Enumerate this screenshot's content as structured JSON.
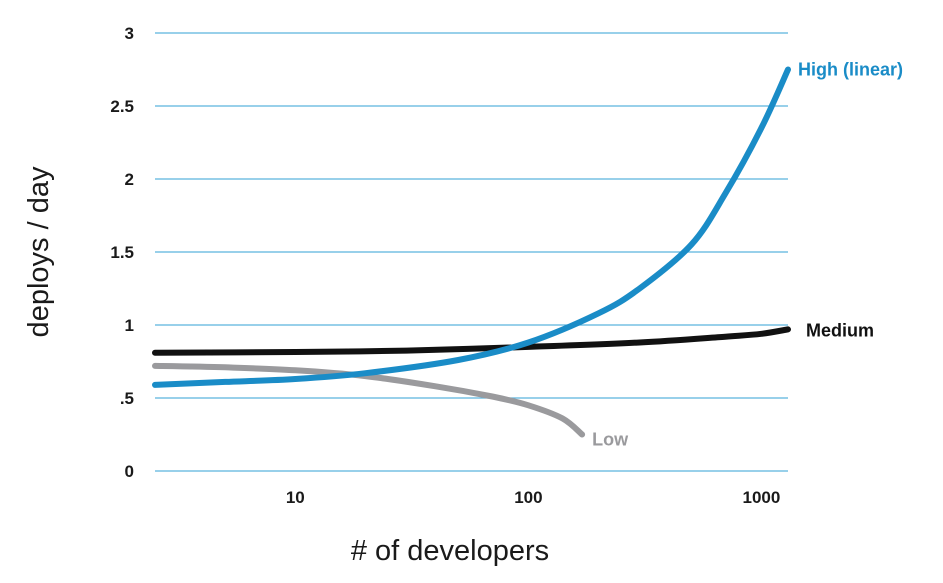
{
  "chart_data": {
    "type": "line",
    "title": "",
    "xlabel": "# of developers",
    "ylabel": "deploys / day",
    "xscale": "log",
    "xlim": [
      2.5,
      1300
    ],
    "ylim": [
      0,
      3
    ],
    "grid": "horizontal",
    "x_ticks": [
      {
        "value": 10,
        "label": "10"
      },
      {
        "value": 100,
        "label": "100"
      },
      {
        "value": 1000,
        "label": "1000"
      }
    ],
    "y_ticks": [
      {
        "value": 0,
        "label": "0"
      },
      {
        "value": 0.5,
        "label": ".5"
      },
      {
        "value": 1,
        "label": "1"
      },
      {
        "value": 1.5,
        "label": "1.5"
      },
      {
        "value": 2,
        "label": "2"
      },
      {
        "value": 2.5,
        "label": "2.5"
      },
      {
        "value": 3,
        "label": "3"
      }
    ],
    "series": [
      {
        "name": "Low",
        "color": "#9a9a9d",
        "points": [
          [
            2.5,
            0.72
          ],
          [
            5,
            0.71
          ],
          [
            10,
            0.69
          ],
          [
            20,
            0.65
          ],
          [
            40,
            0.58
          ],
          [
            70,
            0.51
          ],
          [
            100,
            0.45
          ],
          [
            140,
            0.36
          ],
          [
            170,
            0.25
          ]
        ]
      },
      {
        "name": "Medium",
        "color": "#111111",
        "points": [
          [
            2.5,
            0.81
          ],
          [
            10,
            0.815
          ],
          [
            30,
            0.825
          ],
          [
            100,
            0.85
          ],
          [
            300,
            0.88
          ],
          [
            700,
            0.92
          ],
          [
            1000,
            0.94
          ],
          [
            1300,
            0.97
          ]
        ]
      },
      {
        "name": "High (linear)",
        "color": "#1a8cc7",
        "points": [
          [
            2.5,
            0.59
          ],
          [
            5,
            0.61
          ],
          [
            10,
            0.63
          ],
          [
            20,
            0.67
          ],
          [
            50,
            0.76
          ],
          [
            100,
            0.88
          ],
          [
            200,
            1.08
          ],
          [
            300,
            1.25
          ],
          [
            500,
            1.55
          ],
          [
            700,
            1.9
          ],
          [
            1000,
            2.35
          ],
          [
            1300,
            2.75
          ]
        ]
      }
    ]
  }
}
